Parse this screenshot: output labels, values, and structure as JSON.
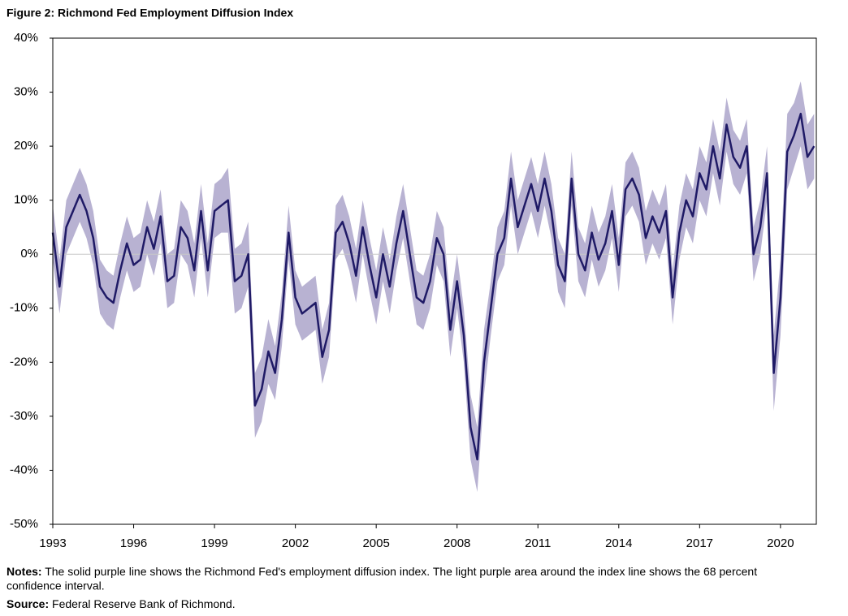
{
  "chart_data": {
    "type": "line",
    "title": "Figure 2: Richmond Fed Employment Diffusion Index",
    "notes_label": "Notes:",
    "notes": "The solid purple line shows the Richmond Fed's employment diffusion index. The light purple area around the index line shows the 68 percent confidence interval.",
    "source_label": "Source:",
    "source": "Federal Reserve Bank of Richmond.",
    "xlim": [
      1993,
      2021.33
    ],
    "xticks": [
      1993,
      1996,
      1999,
      2002,
      2005,
      2008,
      2011,
      2014,
      2017,
      2020
    ],
    "ylim": [
      -50,
      40
    ],
    "yticks": [
      {
        "value": -50,
        "label": "-50%"
      },
      {
        "value": -40,
        "label": "-40%"
      },
      {
        "value": -30,
        "label": "-30%"
      },
      {
        "value": -20,
        "label": "-20%"
      },
      {
        "value": -10,
        "label": "-10%"
      },
      {
        "value": 0,
        "label": "0%"
      },
      {
        "value": 10,
        "label": "10%"
      },
      {
        "value": 20,
        "label": "20%"
      },
      {
        "value": 30,
        "label": "30%"
      },
      {
        "value": 40,
        "label": "40%"
      }
    ],
    "x": [
      1993,
      1993.25,
      1993.5,
      1993.75,
      1994,
      1994.25,
      1994.5,
      1994.75,
      1995,
      1995.25,
      1995.5,
      1995.75,
      1996,
      1996.25,
      1996.5,
      1996.75,
      1997,
      1997.25,
      1997.5,
      1997.75,
      1998,
      1998.25,
      1998.5,
      1998.75,
      1999,
      1999.25,
      1999.5,
      1999.75,
      2000,
      2000.25,
      2000.5,
      2000.75,
      2001,
      2001.25,
      2001.5,
      2001.75,
      2002,
      2002.25,
      2002.5,
      2002.75,
      2003,
      2003.25,
      2003.5,
      2003.75,
      2004,
      2004.25,
      2004.5,
      2004.75,
      2005,
      2005.25,
      2005.5,
      2005.75,
      2006,
      2006.25,
      2006.5,
      2006.75,
      2007,
      2007.25,
      2007.5,
      2007.75,
      2008,
      2008.25,
      2008.5,
      2008.75,
      2009,
      2009.25,
      2009.5,
      2009.75,
      2010,
      2010.25,
      2010.5,
      2010.75,
      2011,
      2011.25,
      2011.5,
      2011.75,
      2012,
      2012.25,
      2012.5,
      2012.75,
      2013,
      2013.25,
      2013.5,
      2013.75,
      2014,
      2014.25,
      2014.5,
      2014.75,
      2015,
      2015.25,
      2015.5,
      2015.75,
      2016,
      2016.25,
      2016.5,
      2016.75,
      2017,
      2017.25,
      2017.5,
      2017.75,
      2018,
      2018.25,
      2018.5,
      2018.75,
      2019,
      2019.25,
      2019.5,
      2019.75,
      2020,
      2020.25,
      2020.5,
      2020.75,
      2021,
      2021.25
    ],
    "series": [
      {
        "color": "#1f1a66",
        "band_color": "#b8b2d2",
        "values": [
          4,
          -6,
          5,
          8,
          11,
          8,
          3,
          -6,
          -8,
          -9,
          -3,
          2,
          -2,
          -1,
          5,
          1,
          7,
          -5,
          -4,
          5,
          3,
          -3,
          8,
          -3,
          8,
          9,
          10,
          -5,
          -4,
          0,
          -28,
          -25,
          -18,
          -22,
          -12,
          4,
          -8,
          -11,
          -10,
          -9,
          -19,
          -14,
          4,
          6,
          2,
          -4,
          5,
          -2,
          -8,
          0,
          -6,
          2,
          8,
          0,
          -8,
          -9,
          -5,
          3,
          0,
          -14,
          -5,
          -15,
          -32,
          -38,
          -20,
          -10,
          0,
          3,
          14,
          5,
          9,
          13,
          8,
          14,
          8,
          -2,
          -5,
          14,
          0,
          -3,
          4,
          -1,
          2,
          8,
          -2,
          12,
          14,
          11,
          3,
          7,
          4,
          8,
          -8,
          4,
          10,
          7,
          15,
          12,
          20,
          14,
          24,
          18,
          16,
          20,
          0,
          5,
          15,
          -22,
          -8,
          19,
          22,
          26,
          18,
          20
        ],
        "errors": [
          5,
          5,
          5,
          5,
          5,
          5,
          5,
          5,
          5,
          5,
          5,
          5,
          5,
          5,
          5,
          5,
          5,
          5,
          5,
          5,
          5,
          5,
          5,
          5,
          5,
          5,
          6,
          6,
          6,
          6,
          6,
          6,
          6,
          5,
          5,
          5,
          5,
          5,
          5,
          5,
          5,
          5,
          5,
          5,
          5,
          5,
          5,
          5,
          5,
          5,
          5,
          5,
          5,
          5,
          5,
          5,
          5,
          5,
          5,
          5,
          5,
          5,
          6,
          6,
          6,
          5,
          5,
          5,
          5,
          5,
          5,
          5,
          5,
          5,
          5,
          5,
          5,
          5,
          5,
          5,
          5,
          5,
          5,
          5,
          5,
          5,
          5,
          5,
          5,
          5,
          5,
          5,
          5,
          5,
          5,
          5,
          5,
          5,
          5,
          5,
          5,
          5,
          5,
          5,
          5,
          5,
          5,
          7,
          7,
          7,
          6,
          6,
          6,
          6
        ]
      }
    ]
  }
}
